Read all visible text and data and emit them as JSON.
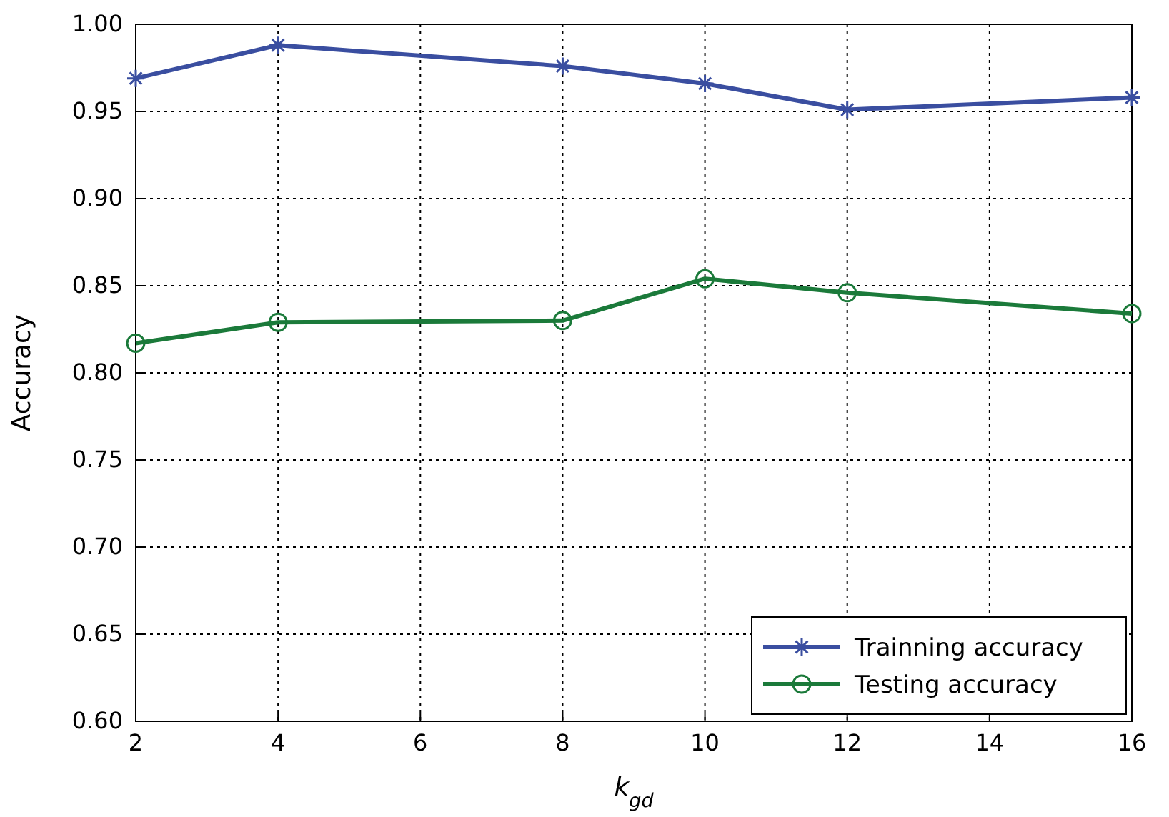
{
  "chart_data": {
    "type": "line",
    "xlabel": "k$_{gd}$",
    "ylabel": "Accuracy",
    "x": [
      2,
      4,
      8,
      10,
      12,
      16
    ],
    "series": [
      {
        "name": "Trainning accuracy",
        "color": "#3a4ea0",
        "marker": "cross",
        "values": [
          0.969,
          0.988,
          0.976,
          0.966,
          0.951,
          0.958
        ]
      },
      {
        "name": "Testing accuracy",
        "color": "#1b7a3a",
        "marker": "circle",
        "values": [
          0.817,
          0.829,
          0.83,
          0.854,
          0.846,
          0.834
        ]
      }
    ],
    "xlim": [
      2,
      16
    ],
    "xticks": [
      2,
      4,
      6,
      8,
      10,
      12,
      14,
      16
    ],
    "ylim": [
      0.6,
      1.0
    ],
    "yticks": [
      {
        "value": 0.6,
        "label": "0.60"
      },
      {
        "value": 0.65,
        "label": "0.65"
      },
      {
        "value": 0.7,
        "label": "0.70"
      },
      {
        "value": 0.75,
        "label": "0.75"
      },
      {
        "value": 0.8,
        "label": "0.80"
      },
      {
        "value": 0.85,
        "label": "0.85"
      },
      {
        "value": 0.9,
        "label": "0.90"
      },
      {
        "value": 0.95,
        "label": "0.95"
      },
      {
        "value": 1.0,
        "label": "1.00"
      }
    ],
    "grid": true,
    "legend": "bottom right",
    "line_style": "solid"
  }
}
